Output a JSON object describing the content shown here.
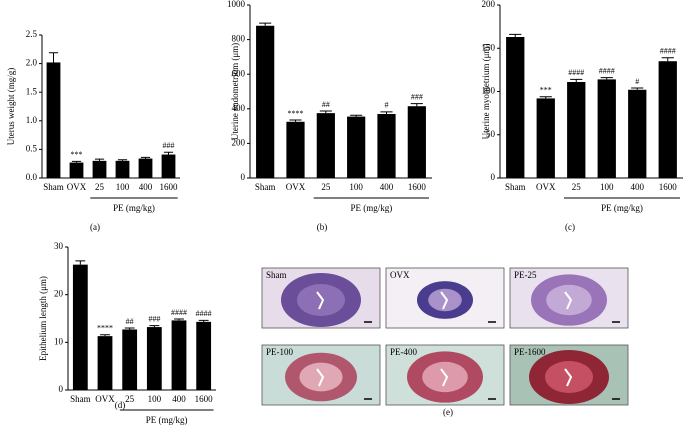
{
  "chart_data": [
    {
      "type": "bar",
      "panel": "(a)",
      "y_label": "Uterus weight (mg/g)",
      "group_label": "PE (mg/kg)",
      "categories": [
        "Sham",
        "OVX",
        "25",
        "100",
        "400",
        "1600"
      ],
      "values": [
        2.02,
        0.27,
        0.3,
        0.3,
        0.34,
        0.41
      ],
      "errors": [
        0.17,
        0.02,
        0.03,
        0.02,
        0.02,
        0.04
      ],
      "annotations": [
        null,
        "***",
        null,
        null,
        null,
        "###"
      ],
      "color": "#000000",
      "ylim": [
        0,
        2.5
      ],
      "yticks": [
        {
          "value": 0,
          "label": "0.0"
        },
        0.5,
        {
          "value": 1,
          "label": "1.0"
        },
        1.5,
        {
          "value": 2,
          "label": "2.0"
        },
        2.5
      ]
    },
    {
      "type": "bar",
      "panel": "(b)",
      "y_label": "Uterine endometrium (μm)",
      "group_label": "PE (mg/kg)",
      "categories": [
        "Sham",
        "OVX",
        "25",
        "100",
        "400",
        "1600"
      ],
      "values": [
        880,
        325,
        375,
        355,
        370,
        415
      ],
      "errors": [
        15,
        10,
        12,
        8,
        12,
        15
      ],
      "annotations": [
        null,
        "****",
        "##",
        null,
        "#",
        "###"
      ],
      "color": "#000000",
      "ylim": [
        0,
        1000
      ],
      "yticks": [
        0,
        200,
        400,
        600,
        800,
        1000
      ]
    },
    {
      "type": "bar",
      "panel": "(c)",
      "y_label": "Uterine myometrium (μm)",
      "group_label": "PE (mg/kg)",
      "categories": [
        "Sham",
        "OVX",
        "25",
        "100",
        "400",
        "1600"
      ],
      "values": [
        163,
        92,
        111,
        114,
        102,
        135
      ],
      "errors": [
        3,
        2,
        3,
        2,
        2,
        4
      ],
      "annotations": [
        null,
        "***",
        "####",
        "####",
        "#",
        "####"
      ],
      "color": "#000000",
      "ylim": [
        0,
        200
      ],
      "yticks": [
        0,
        50,
        100,
        150,
        200
      ]
    },
    {
      "type": "bar",
      "panel": "(d)",
      "y_label": "Epithelium length (μm)",
      "group_label": "PE (mg/kg)",
      "categories": [
        "Sham",
        "OVX",
        "25",
        "100",
        "400",
        "1600"
      ],
      "values": [
        26.3,
        11.3,
        12.7,
        13.2,
        14.6,
        14.3
      ],
      "errors": [
        0.8,
        0.3,
        0.3,
        0.3,
        0.3,
        0.3
      ],
      "annotations": [
        null,
        "****",
        "##",
        "###",
        "####",
        "####"
      ],
      "color": "#000000",
      "ylim": [
        0,
        30
      ],
      "yticks": [
        0,
        10,
        20,
        30
      ]
    }
  ],
  "micrographs": {
    "panel": "(e)",
    "labels": [
      "Sham",
      "OVX",
      "PE-25",
      "PE-100",
      "PE-400",
      "PE-1600"
    ]
  }
}
